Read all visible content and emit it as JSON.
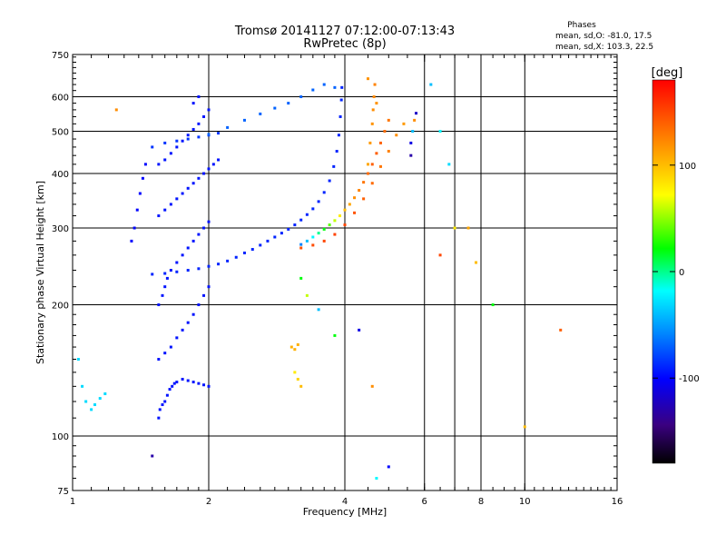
{
  "chart_data": {
    "type": "scatter",
    "title": "Tromsø 20141127 07:12:00-07:13:43",
    "subtitle": "RwPretec (8p)",
    "stats": {
      "heading": "Phases",
      "line1": "mean, sd,O: -81.0, 17.5",
      "line2": "mean, sd,X: 103.3, 22.5"
    },
    "xlabel": "Frequency [MHz]",
    "ylabel": "Stationary phase Virtual Height [km]",
    "x_scale": "log",
    "y_scale": "log",
    "xlim": [
      1,
      16
    ],
    "ylim": [
      75,
      750
    ],
    "x_ticks": [
      1,
      2,
      4,
      6,
      8,
      10,
      16
    ],
    "x_tick_labels": [
      "1",
      "2",
      "4",
      "6",
      "8",
      "10",
      "16"
    ],
    "x_grid": [
      2,
      4,
      6,
      7,
      8,
      10
    ],
    "y_ticks": [
      75,
      100,
      200,
      300,
      400,
      500,
      600,
      750
    ],
    "y_tick_labels": [
      "75",
      "100",
      "200",
      "300",
      "400",
      "500",
      "600",
      "750"
    ],
    "y_grid": [
      100,
      200,
      300,
      400,
      500,
      600
    ],
    "grid": true,
    "colorbar": {
      "label": "[deg]",
      "min": -180,
      "max": 180,
      "ticks": [
        100,
        0,
        -100
      ],
      "tick_labels": [
        "100",
        "0",
        "-100"
      ]
    },
    "series": [
      {
        "points": [
          [
            1.55,
            110,
            -95
          ],
          [
            1.56,
            115,
            -95
          ],
          [
            1.58,
            118,
            -95
          ],
          [
            1.6,
            120,
            -95
          ],
          [
            1.62,
            124,
            -95
          ],
          [
            1.64,
            128,
            -95
          ],
          [
            1.66,
            130,
            -95
          ],
          [
            1.68,
            132,
            -95
          ],
          [
            1.7,
            133,
            -95
          ],
          [
            1.75,
            135,
            -95
          ],
          [
            1.8,
            134,
            -95
          ],
          [
            1.85,
            133,
            -95
          ],
          [
            1.9,
            132,
            -95
          ],
          [
            1.95,
            131,
            -95
          ],
          [
            2.0,
            130,
            -95
          ],
          [
            1.55,
            150,
            -95
          ],
          [
            1.6,
            155,
            -95
          ],
          [
            1.65,
            160,
            -95
          ],
          [
            1.7,
            168,
            -95
          ],
          [
            1.75,
            175,
            -95
          ],
          [
            1.8,
            182,
            -95
          ],
          [
            1.85,
            190,
            -95
          ],
          [
            1.9,
            200,
            -95
          ],
          [
            1.95,
            210,
            -95
          ],
          [
            2.0,
            220,
            -95
          ],
          [
            1.55,
            200,
            -95
          ],
          [
            1.58,
            210,
            -95
          ],
          [
            1.6,
            220,
            -95
          ],
          [
            1.62,
            230,
            -95
          ],
          [
            1.65,
            240,
            -95
          ],
          [
            1.7,
            250,
            -95
          ],
          [
            1.75,
            260,
            -95
          ],
          [
            1.8,
            270,
            -95
          ],
          [
            1.85,
            280,
            -95
          ],
          [
            1.9,
            290,
            -95
          ],
          [
            1.95,
            300,
            -95
          ],
          [
            2.0,
            310,
            -95
          ],
          [
            1.55,
            320,
            -95
          ],
          [
            1.6,
            330,
            -95
          ],
          [
            1.65,
            340,
            -95
          ],
          [
            1.7,
            350,
            -95
          ],
          [
            1.75,
            360,
            -95
          ],
          [
            1.8,
            370,
            -95
          ],
          [
            1.85,
            380,
            -95
          ],
          [
            1.9,
            390,
            -95
          ],
          [
            1.95,
            400,
            -95
          ],
          [
            2.0,
            410,
            -95
          ],
          [
            2.05,
            420,
            -95
          ],
          [
            2.1,
            430,
            -95
          ],
          [
            1.55,
            420,
            -95
          ],
          [
            1.6,
            430,
            -95
          ],
          [
            1.65,
            445,
            -95
          ],
          [
            1.7,
            460,
            -95
          ],
          [
            1.75,
            475,
            -95
          ],
          [
            1.8,
            490,
            -95
          ],
          [
            1.85,
            505,
            -95
          ],
          [
            1.9,
            520,
            -95
          ],
          [
            1.95,
            540,
            -95
          ],
          [
            2.0,
            560,
            -95
          ],
          [
            1.85,
            580,
            -95
          ],
          [
            1.9,
            600,
            -95
          ],
          [
            1.5,
            460,
            -85
          ],
          [
            1.6,
            470,
            -85
          ],
          [
            1.7,
            475,
            -85
          ],
          [
            1.8,
            480,
            -85
          ],
          [
            1.9,
            485,
            -85
          ],
          [
            2.0,
            490,
            -85
          ],
          [
            2.1,
            495,
            -85
          ],
          [
            1.35,
            280,
            -100
          ],
          [
            1.37,
            300,
            -100
          ],
          [
            1.39,
            330,
            -100
          ],
          [
            1.41,
            360,
            -100
          ],
          [
            1.43,
            390,
            -100
          ],
          [
            1.45,
            420,
            -100
          ],
          [
            1.03,
            150,
            -30
          ],
          [
            1.05,
            130,
            -30
          ],
          [
            1.07,
            120,
            -30
          ],
          [
            1.1,
            115,
            -30
          ],
          [
            1.12,
            118,
            -30
          ],
          [
            1.15,
            122,
            -30
          ],
          [
            1.18,
            125,
            -30
          ]
        ]
      },
      {
        "points": [
          [
            1.5,
            235,
            -90
          ],
          [
            1.6,
            236,
            -90
          ],
          [
            1.7,
            238,
            -90
          ],
          [
            1.8,
            240,
            -90
          ],
          [
            1.9,
            242,
            -90
          ],
          [
            2.0,
            245,
            -90
          ],
          [
            2.1,
            248,
            -90
          ],
          [
            2.2,
            252,
            -90
          ],
          [
            2.3,
            257,
            -90
          ],
          [
            2.4,
            263,
            -90
          ],
          [
            2.5,
            268,
            -90
          ],
          [
            2.6,
            274,
            -90
          ],
          [
            2.7,
            280,
            -90
          ],
          [
            2.8,
            286,
            -90
          ],
          [
            2.9,
            292,
            -90
          ],
          [
            3.0,
            298,
            -90
          ],
          [
            3.1,
            305,
            -90
          ],
          [
            3.2,
            313,
            -90
          ],
          [
            3.3,
            322,
            -90
          ],
          [
            3.4,
            332,
            -90
          ],
          [
            3.5,
            345,
            -90
          ],
          [
            3.6,
            362,
            -90
          ],
          [
            3.7,
            385,
            -90
          ],
          [
            3.78,
            415,
            -90
          ],
          [
            3.84,
            450,
            -90
          ],
          [
            3.88,
            490,
            -90
          ],
          [
            3.91,
            540,
            -90
          ],
          [
            3.93,
            590,
            -90
          ],
          [
            3.94,
            630,
            -90
          ]
        ]
      },
      {
        "points": [
          [
            2.0,
            492,
            -70
          ],
          [
            2.2,
            510,
            -70
          ],
          [
            2.4,
            530,
            -70
          ],
          [
            2.6,
            548,
            -70
          ],
          [
            2.8,
            565,
            -70
          ],
          [
            3.0,
            580,
            -70
          ],
          [
            3.2,
            600,
            -70
          ],
          [
            3.4,
            622,
            -70
          ],
          [
            3.6,
            640,
            -70
          ],
          [
            3.8,
            630,
            -70
          ]
        ]
      },
      {
        "points": [
          [
            3.2,
            275,
            -60
          ],
          [
            3.3,
            280,
            -40
          ],
          [
            3.4,
            286,
            -20
          ],
          [
            3.5,
            292,
            0
          ],
          [
            3.6,
            298,
            20
          ],
          [
            3.7,
            305,
            40
          ],
          [
            3.8,
            312,
            60
          ],
          [
            3.9,
            320,
            80
          ],
          [
            4.0,
            330,
            100
          ],
          [
            4.1,
            340,
            110
          ],
          [
            4.2,
            352,
            120
          ],
          [
            4.3,
            366,
            125
          ],
          [
            4.4,
            382,
            130
          ],
          [
            4.5,
            400,
            135
          ],
          [
            4.6,
            420,
            140
          ],
          [
            4.7,
            445,
            140
          ],
          [
            4.8,
            470,
            138
          ],
          [
            4.9,
            500,
            135
          ],
          [
            5.0,
            530,
            130
          ]
        ]
      },
      {
        "points": [
          [
            3.2,
            270,
            145
          ],
          [
            3.4,
            274,
            148
          ],
          [
            3.6,
            280,
            150
          ],
          [
            3.8,
            290,
            152
          ],
          [
            4.0,
            305,
            150
          ],
          [
            4.2,
            325,
            145
          ],
          [
            4.4,
            350,
            140
          ],
          [
            4.6,
            380,
            135
          ],
          [
            4.8,
            415,
            130
          ],
          [
            5.0,
            450,
            125
          ],
          [
            5.2,
            490,
            120
          ],
          [
            5.4,
            520,
            115
          ]
        ]
      },
      {
        "points": [
          [
            4.5,
            420,
            110
          ],
          [
            4.55,
            470,
            115
          ],
          [
            4.6,
            520,
            118
          ],
          [
            4.62,
            560,
            120
          ],
          [
            4.64,
            600,
            122
          ],
          [
            4.66,
            640,
            124
          ],
          [
            4.5,
            660,
            118
          ],
          [
            4.7,
            580,
            118
          ]
        ]
      },
      {
        "points": [
          [
            5.6,
            470,
            -110
          ],
          [
            5.65,
            500,
            -40
          ],
          [
            5.7,
            530,
            120
          ],
          [
            5.75,
            550,
            -120
          ],
          [
            5.6,
            440,
            -130
          ]
        ]
      },
      {
        "points": [
          [
            3.05,
            160,
            105
          ],
          [
            3.1,
            158,
            105
          ],
          [
            3.15,
            162,
            105
          ],
          [
            3.1,
            140,
            80
          ],
          [
            3.15,
            135,
            90
          ],
          [
            3.2,
            130,
            100
          ],
          [
            3.2,
            230,
            20
          ],
          [
            3.3,
            210,
            60
          ],
          [
            3.5,
            195,
            -40
          ],
          [
            3.8,
            170,
            20
          ],
          [
            4.3,
            175,
            -110
          ],
          [
            4.6,
            130,
            120
          ],
          [
            6.2,
            640,
            -40
          ],
          [
            6.5,
            500,
            -20
          ],
          [
            6.8,
            420,
            -30
          ],
          [
            7.0,
            300,
            80
          ],
          [
            7.5,
            300,
            110
          ],
          [
            7.8,
            250,
            100
          ],
          [
            6.5,
            260,
            150
          ],
          [
            8.5,
            200,
            20
          ],
          [
            10,
            105,
            100
          ],
          [
            12,
            175,
            140
          ],
          [
            1.25,
            560,
            120
          ],
          [
            1.5,
            90,
            -130
          ],
          [
            5.0,
            85,
            -100
          ],
          [
            4.7,
            80,
            -20
          ]
        ]
      }
    ]
  }
}
